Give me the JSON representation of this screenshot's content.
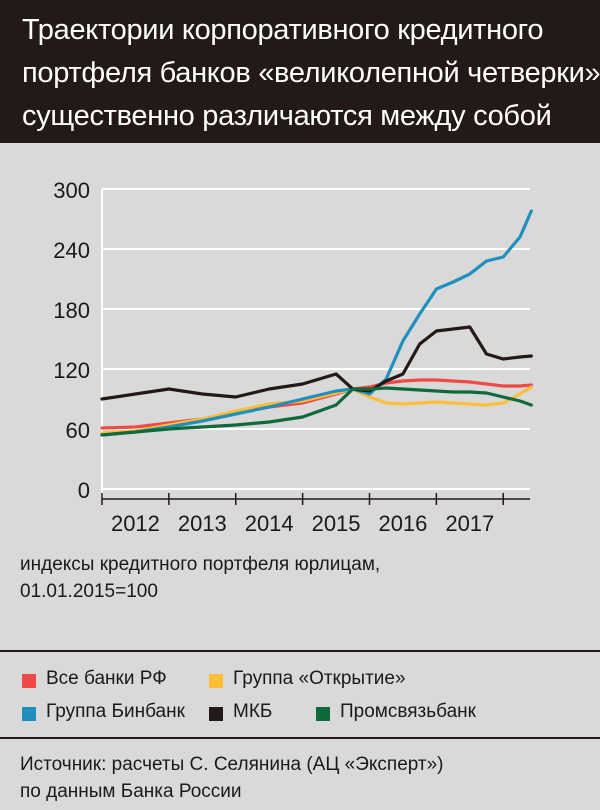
{
  "header": {
    "title_lines": [
      "Траектории корпоративного кредитного",
      "портфеля банков «великолепной четверки»",
      "существенно различаются между собой"
    ]
  },
  "note": {
    "line1": "индексы кредитного портфеля юрлицам,",
    "line2": "01.01.2015=100"
  },
  "legend": [
    {
      "label": "Все банки РФ",
      "color": "#f04a48"
    },
    {
      "label": "Группа «Открытие»",
      "color": "#fbbf3a"
    },
    {
      "label": "Группа Бинбанк",
      "color": "#1f8fbe"
    },
    {
      "label": "МКБ",
      "color": "#231916"
    },
    {
      "label": "Промсвязьбанк",
      "color": "#0e6a3b"
    }
  ],
  "source": {
    "line1": "Источник: расчеты С. Селянина (АЦ «Эксперт»)",
    "line2": "по данным Банка России"
  },
  "chart_data": {
    "type": "line",
    "title": "",
    "xlabel": "",
    "ylabel": "индексы кредитного портфеля юрлицам, 01.01.2015=100",
    "ylim": [
      0,
      300
    ],
    "yticks": [
      0,
      60,
      120,
      180,
      240,
      300
    ],
    "xlim": [
      2011.5,
      2017.9
    ],
    "x_tick_labels": [
      "2012",
      "2013",
      "2014",
      "2015",
      "2016",
      "2017"
    ],
    "x_tick_positions": [
      2012,
      2013,
      2014,
      2015,
      2016,
      2017
    ],
    "grid": true,
    "x": [
      2011.5,
      2012.0,
      2012.5,
      2013.0,
      2013.5,
      2014.0,
      2014.5,
      2015.0,
      2015.25,
      2015.5,
      2015.75,
      2016.0,
      2016.25,
      2016.5,
      2016.75,
      2017.0,
      2017.25,
      2017.5,
      2017.75,
      2017.92
    ],
    "series": [
      {
        "name": "Все банки РФ",
        "color": "#f04a48",
        "values": [
          61,
          62,
          66,
          70,
          76,
          82,
          86,
          95,
          100,
          102,
          106,
          108,
          109,
          109,
          108,
          107,
          105,
          103,
          103,
          104
        ]
      },
      {
        "name": "Группа «Открытие»",
        "color": "#fbbf3a",
        "values": [
          56,
          58,
          64,
          70,
          78,
          85,
          88,
          96,
          100,
          92,
          86,
          85,
          86,
          87,
          86,
          85,
          84,
          86,
          95,
          102
        ]
      },
      {
        "name": "Группа Бинбанк",
        "color": "#1f8fbe",
        "values": [
          54,
          57,
          62,
          68,
          75,
          82,
          90,
          98,
          100,
          95,
          110,
          148,
          175,
          200,
          207,
          215,
          228,
          232,
          252,
          278
        ]
      },
      {
        "name": "МКБ",
        "color": "#231916",
        "values": [
          90,
          95,
          100,
          95,
          92,
          100,
          105,
          115,
          100,
          98,
          108,
          115,
          145,
          158,
          160,
          162,
          135,
          130,
          132,
          133
        ]
      },
      {
        "name": "Промсвязьбанк",
        "color": "#0e6a3b",
        "values": [
          54,
          57,
          60,
          62,
          64,
          67,
          72,
          84,
          100,
          100,
          101,
          100,
          99,
          98,
          97,
          97,
          96,
          92,
          88,
          84
        ]
      }
    ]
  }
}
